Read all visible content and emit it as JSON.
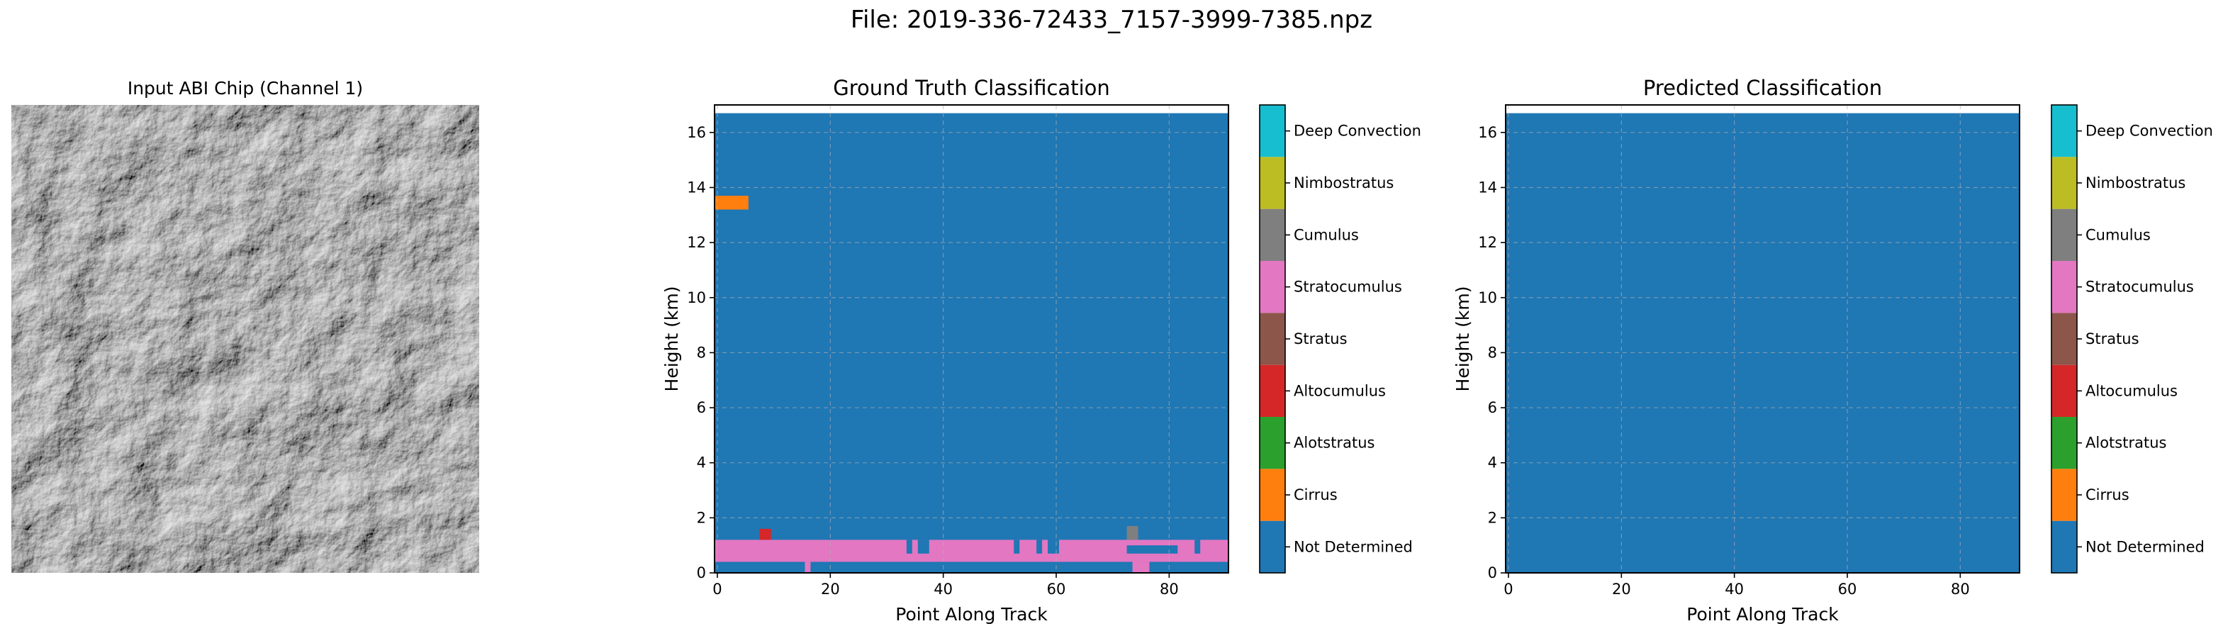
{
  "suptitle": "File: 2019-336-72433_7157-3999-7385.npz",
  "input_panel": {
    "title": "Input ABI Chip (Channel 1)"
  },
  "chart_data": [
    {
      "type": "heatmap",
      "title": "Ground Truth Classification",
      "xlabel": "Point Along Track",
      "ylabel": "Height (km)",
      "xlim": [
        -0.5,
        90.5
      ],
      "ylim": [
        0,
        17
      ],
      "xticks": [
        0,
        20,
        40,
        60,
        80
      ],
      "yticks": [
        0,
        2,
        4,
        6,
        8,
        10,
        12,
        14,
        16
      ],
      "grid": true,
      "background_class": "Not Determined",
      "data_top_km": 16.7,
      "regions": [
        {
          "class": "Cirrus",
          "x": [
            -0.5,
            5.5
          ],
          "y": [
            13.2,
            13.7
          ]
        },
        {
          "class": "Stratocumulus",
          "x": [
            -0.5,
            90.5
          ],
          "y": [
            0.4,
            1.2
          ]
        },
        {
          "class": "Stratocumulus",
          "x": [
            15.5,
            16.5
          ],
          "y": [
            0.0,
            0.4
          ]
        },
        {
          "class": "Stratocumulus",
          "x": [
            73.5,
            76.5
          ],
          "y": [
            0.0,
            0.4
          ]
        },
        {
          "class": "Altocumulus",
          "x": [
            7.5,
            9.5
          ],
          "y": [
            1.2,
            1.6
          ]
        },
        {
          "class": "Cumulus",
          "x": [
            72.5,
            74.5
          ],
          "y": [
            1.2,
            1.7
          ]
        },
        {
          "class": "Not Determined",
          "x": [
            33.5,
            34.5
          ],
          "y": [
            0.7,
            1.2
          ]
        },
        {
          "class": "Not Determined",
          "x": [
            35.5,
            37.5
          ],
          "y": [
            0.7,
            1.2
          ]
        },
        {
          "class": "Not Determined",
          "x": [
            52.5,
            53.5
          ],
          "y": [
            0.7,
            1.2
          ]
        },
        {
          "class": "Not Determined",
          "x": [
            56.5,
            57.5
          ],
          "y": [
            0.7,
            1.2
          ]
        },
        {
          "class": "Not Determined",
          "x": [
            58.5,
            60.5
          ],
          "y": [
            0.7,
            1.2
          ]
        },
        {
          "class": "Not Determined",
          "x": [
            72.5,
            81.5
          ],
          "y": [
            0.7,
            1.0
          ]
        },
        {
          "class": "Not Determined",
          "x": [
            84.5,
            85.5
          ],
          "y": [
            0.7,
            1.2
          ]
        }
      ]
    },
    {
      "type": "heatmap",
      "title": "Predicted Classification",
      "xlabel": "Point Along Track",
      "ylabel": "Height (km)",
      "xlim": [
        -0.5,
        90.5
      ],
      "ylim": [
        0,
        17
      ],
      "xticks": [
        0,
        20,
        40,
        60,
        80
      ],
      "yticks": [
        0,
        2,
        4,
        6,
        8,
        10,
        12,
        14,
        16
      ],
      "grid": true,
      "background_class": "Not Determined",
      "data_top_km": 16.7,
      "regions": []
    }
  ],
  "legend": {
    "classes": [
      {
        "name": "Not Determined",
        "color": "#1f77b4"
      },
      {
        "name": "Cirrus",
        "color": "#ff7f0e"
      },
      {
        "name": "Alotstratus",
        "color": "#2ca02c"
      },
      {
        "name": "Altocumulus",
        "color": "#d62728"
      },
      {
        "name": "Stratus",
        "color": "#8c564b"
      },
      {
        "name": "Stratocumulus",
        "color": "#e377c2"
      },
      {
        "name": "Cumulus",
        "color": "#7f7f7f"
      },
      {
        "name": "Nimbostratus",
        "color": "#bcbd22"
      },
      {
        "name": "Deep Convection",
        "color": "#17becf"
      }
    ]
  }
}
